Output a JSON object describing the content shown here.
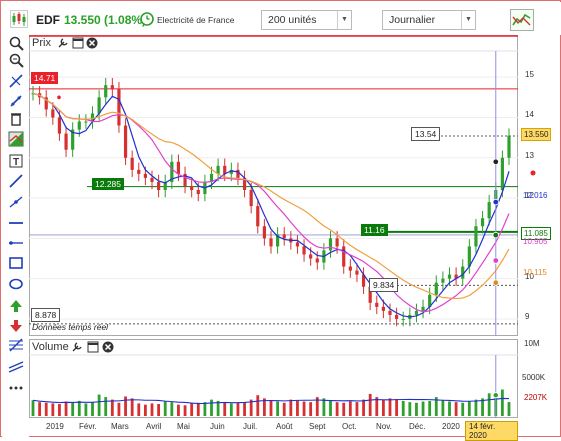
{
  "header": {
    "ticker": "EDF",
    "price": "13.550 (1.08%)",
    "company": "Electricité de France",
    "units_select": "200 unités",
    "period_select": "Journalier"
  },
  "toolbar_icons": [
    "zoom-in-icon",
    "zoom-out-icon",
    "crosshair-icon",
    "cross-cursor-icon",
    "trash-icon",
    "theme-icon",
    "text-icon",
    "trendline-icon",
    "segment-icon",
    "hline-icon",
    "ray-icon",
    "rectangle-icon",
    "ellipse-icon",
    "up-arrow-icon",
    "down-arrow-icon",
    "fibonacci-icon",
    "channel-icon",
    "more-icon"
  ],
  "price_panel": {
    "title": "Prix",
    "y_ticks": [
      "15",
      "14",
      "13",
      "12",
      "11",
      "10",
      "9"
    ],
    "current_price": "13.550",
    "hline_label": "14.71",
    "low_label": "8.878",
    "data_note": "Données temps réel",
    "annotations": [
      "13.54",
      "12.285",
      "11.16",
      "9.834"
    ],
    "right_labels": [
      "12.016",
      "11.085",
      "10.905",
      "10.115"
    ],
    "colors": {
      "bull": "#2ea02e",
      "bear": "#d63030",
      "ma_short": "#2030d0",
      "ma_mid": "#e040d0",
      "ma_long": "#f0a040",
      "accent_red": "#e8222a",
      "accent_green": "#0a7a0a"
    }
  },
  "volume_panel": {
    "title": "Volume",
    "y_ticks": [
      "10M",
      "5000K"
    ],
    "volume_label": "2207K"
  },
  "x_axis": {
    "labels": [
      "2019",
      "Févr.",
      "Mars",
      "Avril",
      "Mai",
      "Juin",
      "Juil.",
      "Août",
      "Sept",
      "Oct.",
      "Nov.",
      "Déc.",
      "2020"
    ],
    "cursor_date": "14 févr. 2020"
  },
  "chart_data": {
    "type": "line",
    "title": "",
    "ylim": [
      8.8,
      15.6
    ],
    "ma_levels_right": [
      12.016,
      10.905,
      10.115
    ],
    "close": [
      14.6,
      14.5,
      14.2,
      14.0,
      13.6,
      13.2,
      13.7,
      13.9,
      13.9,
      14.1,
      14.5,
      14.8,
      14.7,
      13.8,
      13.0,
      12.7,
      12.6,
      12.5,
      12.4,
      12.2,
      12.4,
      12.9,
      12.6,
      12.3,
      12.2,
      12.1,
      12.4,
      12.6,
      12.8,
      12.6,
      12.7,
      12.5,
      12.2,
      11.8,
      11.3,
      11.0,
      10.8,
      11.1,
      11.0,
      10.9,
      10.8,
      10.6,
      10.5,
      10.4,
      10.7,
      11.0,
      10.8,
      10.3,
      10.2,
      10.1,
      9.8,
      9.4,
      9.3,
      9.2,
      9.1,
      9.0,
      9.0,
      9.1,
      9.2,
      9.3,
      9.6,
      9.9,
      10.0,
      10.1,
      10.0,
      10.3,
      10.8,
      11.3,
      11.5,
      11.9,
      12.2,
      13.0,
      13.55
    ],
    "volume_k": [
      2500,
      2200,
      2100,
      2000,
      1900,
      2300,
      2100,
      2400,
      2000,
      2200,
      3400,
      3000,
      2600,
      2100,
      3100,
      2800,
      2000,
      1800,
      2000,
      1900,
      2300,
      2200,
      1800,
      1700,
      2000,
      2100,
      2200,
      2600,
      2400,
      2200,
      2000,
      2100,
      2200,
      2600,
      3300,
      2800,
      2400,
      2300,
      2100,
      2600,
      2400,
      2300,
      2200,
      3000,
      2800,
      2400,
      2200,
      2100,
      2300,
      2200,
      2600,
      3500,
      3000,
      2600,
      2800,
      2700,
      2400,
      2200,
      2100,
      2300,
      2400,
      3000,
      2500,
      2300,
      2200,
      2100,
      2300,
      2600,
      2800,
      3600,
      3300,
      4200,
      2207
    ]
  }
}
